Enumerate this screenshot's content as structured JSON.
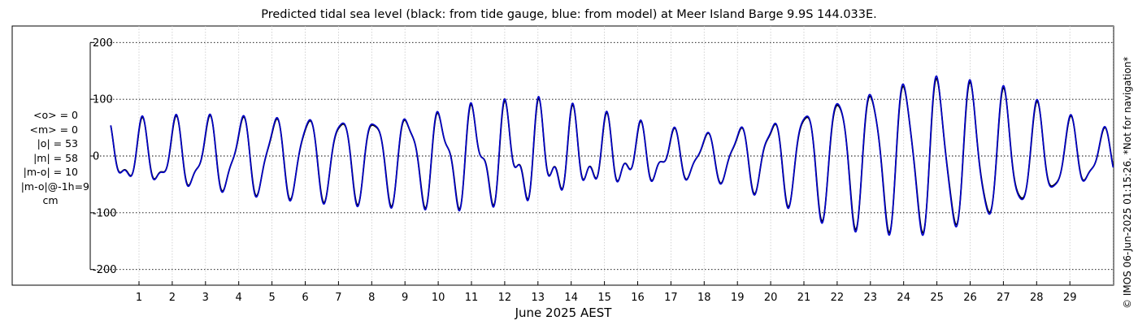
{
  "chart_data": {
    "type": "line",
    "title": "Predicted tidal sea level (black: from tide gauge, blue: from model) at Meer Island Barge 9.9S 144.033E.",
    "xlabel": "June 2025 AEST",
    "ylabel": "",
    "ylim": [
      -230,
      230
    ],
    "yticks": [
      -200,
      -100,
      0,
      100,
      200
    ],
    "ytick_labels": [
      "-200",
      "-100",
      "0",
      "100",
      "200"
    ],
    "xlim": [
      -0.6,
      30.3
    ],
    "xticks": [
      1,
      2,
      3,
      4,
      5,
      6,
      7,
      8,
      9,
      10,
      11,
      12,
      13,
      14,
      15,
      16,
      17,
      18,
      19,
      20,
      21,
      22,
      23,
      24,
      25,
      26,
      27,
      28,
      29
    ],
    "xtick_labels": [
      "1",
      "2",
      "3",
      "4",
      "5",
      "6",
      "7",
      "8",
      "9",
      "10",
      "11",
      "12",
      "13",
      "14",
      "15",
      "16",
      "17",
      "18",
      "19",
      "20",
      "21",
      "22",
      "23",
      "24",
      "25",
      "26",
      "27",
      "28",
      "29"
    ],
    "grid": true,
    "series": [
      {
        "name": "black: from tide gauge",
        "color": "#000000",
        "x_start": 0.15,
        "x_end": 30.3,
        "amplitude_envelope": {
          "x": [
            0.15,
            3,
            6,
            9,
            11,
            13,
            16,
            18,
            20,
            22,
            24,
            25,
            27,
            29,
            30.3
          ],
          "a1": [
            45,
            58,
            70,
            74,
            76,
            66,
            40,
            36,
            62,
            110,
            128,
            132,
            106,
            58,
            35
          ],
          "a2": [
            22,
            20,
            14,
            20,
            34,
            42,
            26,
            10,
            18,
            20,
            22,
            24,
            20,
            16,
            14
          ]
        }
      },
      {
        "name": "blue: from model",
        "color": "#0000cc",
        "x_start": 0.15,
        "x_end": 30.3,
        "amplitude_envelope": {
          "x": [
            0.15,
            3,
            6,
            9,
            11,
            13,
            16,
            18,
            20,
            22,
            24,
            25,
            27,
            29,
            30.3
          ],
          "a1": [
            45,
            58,
            70,
            74,
            76,
            66,
            40,
            36,
            62,
            110,
            128,
            132,
            106,
            58,
            35
          ],
          "a2": [
            22,
            20,
            14,
            20,
            34,
            42,
            26,
            10,
            18,
            20,
            22,
            24,
            20,
            16,
            14
          ]
        }
      }
    ],
    "stats": [
      "<o> = 0",
      "<m> = 0",
      "|o| = 53",
      "|m| = 58",
      "|m-o| = 10",
      "|m-o|@-1h=9",
      "cm"
    ]
  },
  "copyright": "© IMOS 06-Jun-2025 01:15:26. *Not for navigation*"
}
